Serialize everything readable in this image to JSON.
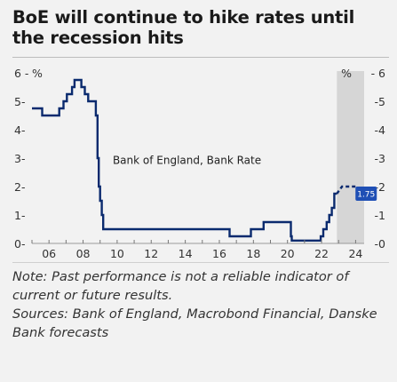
{
  "title": "BoE will continue to hike rates until the recession hits",
  "notes": {
    "performance": "Note: Past performance is not a reliable indicator of current or future results.",
    "sources": "Sources: Bank of England, Macrobond Financial, Danske Bank forecasts"
  },
  "chart_data": {
    "type": "line",
    "title": "",
    "xlabel": "",
    "ylabel_left": "%",
    "ylabel_right": "%",
    "xlim": [
      2005,
      2024.5
    ],
    "ylim": [
      0,
      6
    ],
    "x_ticks": [
      6,
      8,
      10,
      12,
      14,
      16,
      18,
      20,
      22,
      24
    ],
    "x_tick_labels": [
      "06",
      "08",
      "10",
      "12",
      "14",
      "16",
      "18",
      "20",
      "22",
      "24"
    ],
    "y_ticks": [
      0,
      1,
      2,
      3,
      4,
      5,
      6
    ],
    "y_tick_labels_left": [
      "0",
      "1",
      "2",
      "3",
      "4",
      "5",
      "6"
    ],
    "y_tick_labels_right": [
      "0",
      "1",
      "2",
      "3",
      "4",
      "5",
      "6"
    ],
    "shaded_forecast_region": [
      2022.9,
      2024.5
    ],
    "series": [
      {
        "name": "Bank of England, Bank Rate",
        "color": "#0a2a6e",
        "x": [
          2005,
          2005.6,
          2005.6,
          2006.6,
          2006.6,
          2006.85,
          2006.85,
          2007.05,
          2007.05,
          2007.35,
          2007.35,
          2007.5,
          2007.5,
          2007.9,
          2007.9,
          2008.1,
          2008.1,
          2008.3,
          2008.3,
          2008.75,
          2008.75,
          2008.85,
          2008.85,
          2008.92,
          2008.92,
          2009.0,
          2009.0,
          2009.1,
          2009.1,
          2009.18,
          2009.18,
          2016.6,
          2016.6,
          2017.85,
          2017.85,
          2018.6,
          2018.6,
          2020.2,
          2020.2,
          2020.25,
          2020.25,
          2021.95,
          2021.95,
          2022.1,
          2022.1,
          2022.3,
          2022.3,
          2022.45,
          2022.45,
          2022.6,
          2022.6,
          2022.75,
          2022.75,
          2022.9
        ],
        "values": [
          4.75,
          4.75,
          4.5,
          4.5,
          4.75,
          4.75,
          5.0,
          5.0,
          5.25,
          5.25,
          5.5,
          5.5,
          5.75,
          5.75,
          5.5,
          5.5,
          5.25,
          5.25,
          5.0,
          5.0,
          4.5,
          4.5,
          3.0,
          3.0,
          2.0,
          2.0,
          1.5,
          1.5,
          1.0,
          1.0,
          0.5,
          0.5,
          0.25,
          0.25,
          0.5,
          0.5,
          0.75,
          0.75,
          0.25,
          0.25,
          0.1,
          0.1,
          0.25,
          0.25,
          0.5,
          0.5,
          0.75,
          0.75,
          1.0,
          1.0,
          1.25,
          1.25,
          1.75,
          1.75
        ]
      },
      {
        "name": "forecast",
        "color": "#0a2a6e",
        "dashed": true,
        "x": [
          2022.9,
          2023.2,
          2023.5,
          2023.8,
          2024.1
        ],
        "values": [
          1.75,
          2.0,
          2.0,
          2.0,
          2.0
        ]
      }
    ],
    "annotations": [
      {
        "text": "Bank of England, Bank Rate",
        "x": 2014.1,
        "y": 2.8
      },
      {
        "text": "1.75",
        "x": 2024.2,
        "y": 1.75,
        "style": "badge",
        "color": "#1f4fb5"
      }
    ]
  }
}
